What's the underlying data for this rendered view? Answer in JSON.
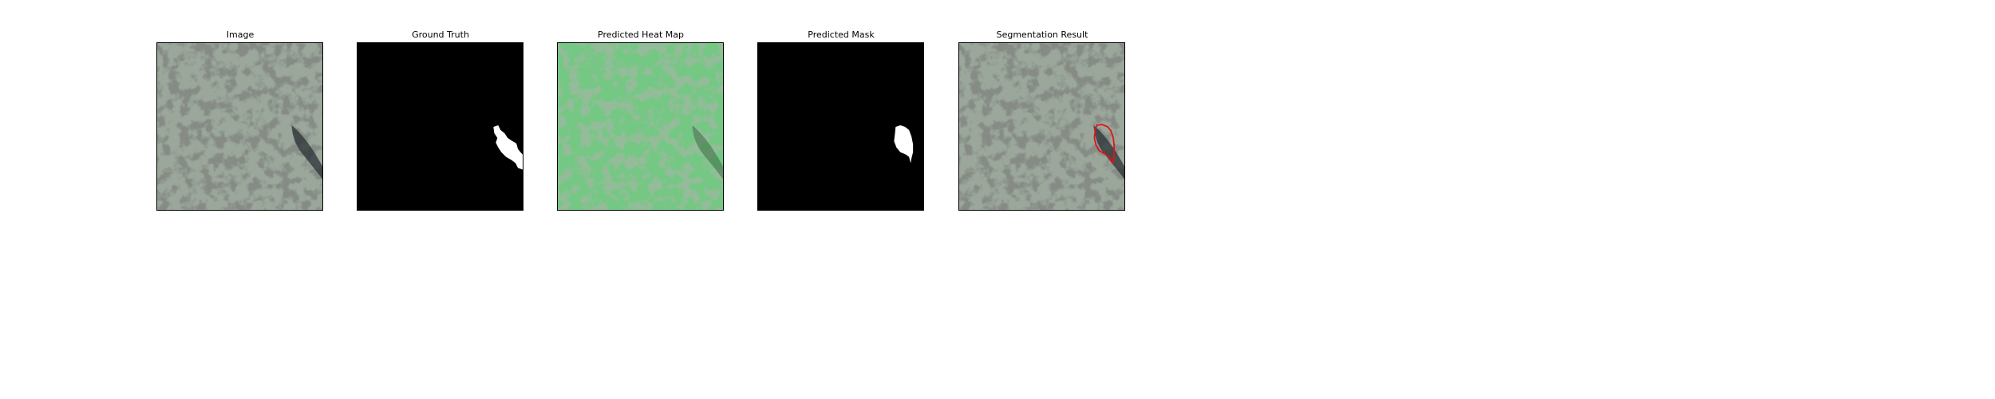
{
  "figure": {
    "panels": [
      {
        "title": "Image",
        "content": "texture-photo"
      },
      {
        "title": "Ground Truth",
        "content": "binary-mask"
      },
      {
        "title": "Predicted Heat Map",
        "content": "green-heatmap-overlay"
      },
      {
        "title": "Predicted Mask",
        "content": "binary-mask"
      },
      {
        "title": "Segmentation Result",
        "content": "texture-with-red-contour"
      }
    ],
    "colors": {
      "texture_light": "#9aa79a",
      "texture_dark": "#3b3f3b",
      "defect_dark": "#2b3136",
      "heatmap_green": "#56c46b",
      "mask_bg": "#000000",
      "mask_fg": "#ffffff",
      "contour": "#e01515",
      "frame_border": "#000000"
    }
  }
}
